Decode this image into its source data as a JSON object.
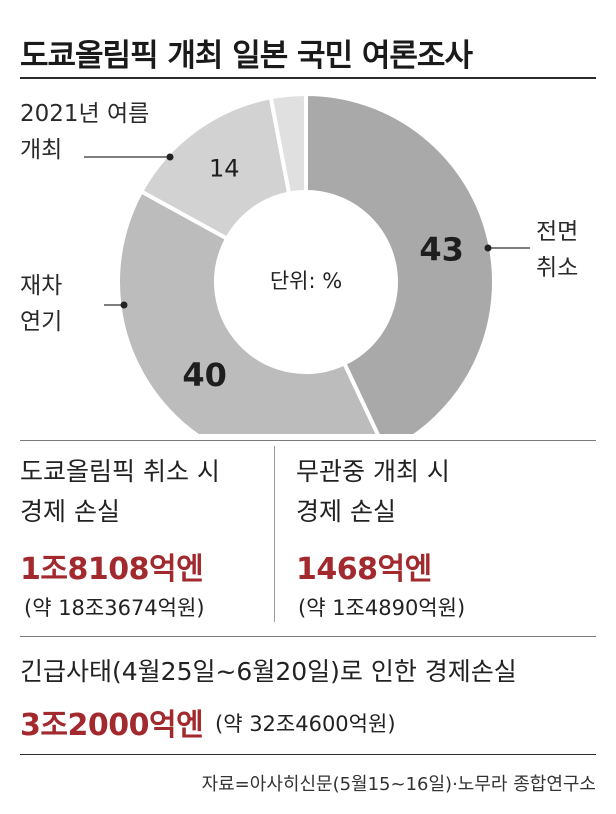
{
  "title": "도쿄올림픽 개최 일본 국민 여론조사",
  "chart_data": {
    "type": "pie",
    "title": "도쿄올림픽 개최 일본 국민 여론조사",
    "unit_label": "단위: %",
    "slices": [
      {
        "label": "전면 취소",
        "value": 43,
        "color": "#a9a9a9"
      },
      {
        "label": "재차 연기",
        "value": 40,
        "color": "#bcbcbc"
      },
      {
        "label": "2021년 여름 개최",
        "value": 14,
        "color": "#d2d2d2"
      },
      {
        "label": "",
        "value": 3,
        "color": "#e0e0e0"
      }
    ]
  },
  "slice_labels": {
    "cancel": {
      "line1": "전면",
      "line2": "취소"
    },
    "postpone": {
      "line1": "재차",
      "line2": "연기"
    },
    "summer": {
      "line1": "2021년 여름",
      "line2": "개최"
    }
  },
  "cancel_stat": {
    "line1": "도쿄올림픽 취소 시",
    "line2": "경제 손실",
    "value": "1조8108억엔",
    "sub": "(약 18조3674억원)"
  },
  "no_spectator_stat": {
    "line1": "무관중 개최 시",
    "line2": "경제 손실",
    "value": "1468억엔",
    "sub": "(약 1조4890억원)"
  },
  "emergency_stat": {
    "label": "긴급사태(4월25일~6월20일)로 인한 경제손실",
    "value": "3조2000억엔",
    "sub": "(약 32조4600억원)"
  },
  "source": "자료=아사히신문(5월15~16일)·노무라 종합연구소"
}
